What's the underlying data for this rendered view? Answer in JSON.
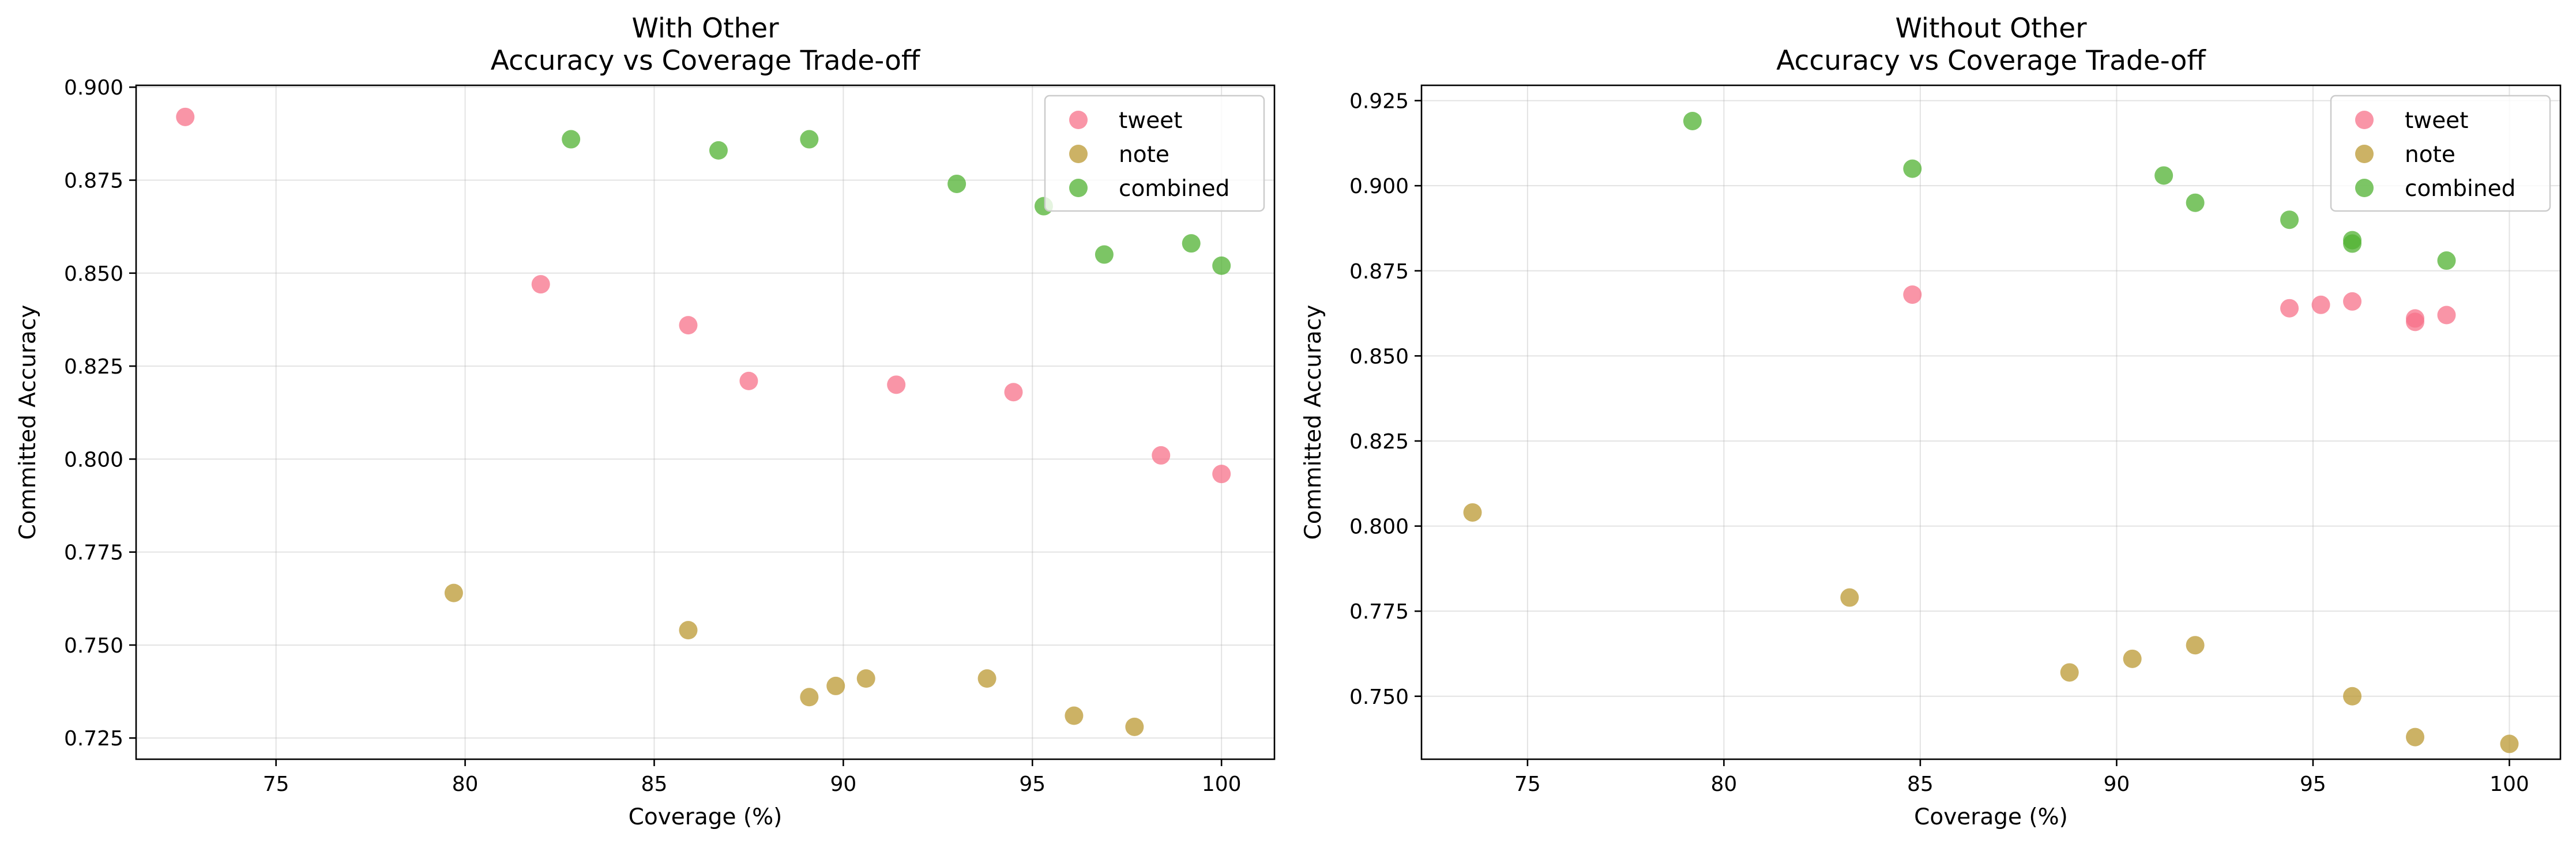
{
  "chart_data": [
    {
      "type": "scatter",
      "title": "With Other\nAccuracy vs Coverage Trade-off",
      "xlabel": "Coverage (%)",
      "ylabel": "Committed Accuracy",
      "xlim": [
        71.3,
        101.4
      ],
      "ylim": [
        0.7193,
        0.9005
      ],
      "xticks": [
        75,
        80,
        85,
        90,
        95,
        100
      ],
      "yticks": [
        0.725,
        0.75,
        0.775,
        0.8,
        0.825,
        0.85,
        0.875,
        0.9
      ],
      "ytick_format": 3,
      "grid": true,
      "legend_position": "upper right",
      "series": [
        {
          "name": "tweet",
          "color": "#f77189",
          "points": [
            [
              72.6,
              0.892
            ],
            [
              82.0,
              0.847
            ],
            [
              85.9,
              0.836
            ],
            [
              87.5,
              0.821
            ],
            [
              91.4,
              0.82
            ],
            [
              94.5,
              0.818
            ],
            [
              98.4,
              0.801
            ],
            [
              100.0,
              0.796
            ]
          ]
        },
        {
          "name": "note",
          "color": "#bb9832",
          "points": [
            [
              79.7,
              0.764
            ],
            [
              85.9,
              0.754
            ],
            [
              89.1,
              0.736
            ],
            [
              89.8,
              0.739
            ],
            [
              90.6,
              0.741
            ],
            [
              93.8,
              0.741
            ],
            [
              96.1,
              0.731
            ],
            [
              97.7,
              0.728
            ]
          ]
        },
        {
          "name": "combined",
          "color": "#50b131",
          "points": [
            [
              82.8,
              0.886
            ],
            [
              86.7,
              0.883
            ],
            [
              89.1,
              0.886
            ],
            [
              93.0,
              0.874
            ],
            [
              95.3,
              0.868
            ],
            [
              96.9,
              0.855
            ],
            [
              99.2,
              0.858
            ],
            [
              100.0,
              0.852
            ]
          ]
        }
      ]
    },
    {
      "type": "scatter",
      "title": "Without Other\nAccuracy vs Coverage Trade-off",
      "xlabel": "Coverage (%)",
      "ylabel": "Committed Accuracy",
      "xlim": [
        72.3,
        101.3
      ],
      "ylim": [
        0.7315,
        0.9295
      ],
      "xticks": [
        75,
        80,
        85,
        90,
        95,
        100
      ],
      "yticks": [
        0.75,
        0.775,
        0.8,
        0.825,
        0.85,
        0.875,
        0.9,
        0.925
      ],
      "ytick_format": 3,
      "grid": true,
      "legend_position": "upper right",
      "series": [
        {
          "name": "tweet",
          "color": "#f77189",
          "points": [
            [
              84.8,
              0.868
            ],
            [
              94.4,
              0.864
            ],
            [
              95.2,
              0.865
            ],
            [
              96.0,
              0.866
            ],
            [
              97.6,
              0.861
            ],
            [
              97.6,
              0.86
            ],
            [
              98.4,
              0.862
            ]
          ]
        },
        {
          "name": "note",
          "color": "#bb9832",
          "points": [
            [
              73.6,
              0.804
            ],
            [
              83.2,
              0.779
            ],
            [
              88.8,
              0.757
            ],
            [
              90.4,
              0.761
            ],
            [
              92.0,
              0.765
            ],
            [
              96.0,
              0.75
            ],
            [
              97.6,
              0.738
            ],
            [
              100.0,
              0.736
            ]
          ]
        },
        {
          "name": "combined",
          "color": "#50b131",
          "points": [
            [
              79.2,
              0.919
            ],
            [
              84.8,
              0.905
            ],
            [
              91.2,
              0.903
            ],
            [
              92.0,
              0.895
            ],
            [
              94.4,
              0.89
            ],
            [
              96.0,
              0.883
            ],
            [
              96.0,
              0.884
            ],
            [
              98.4,
              0.878
            ]
          ]
        }
      ]
    }
  ]
}
